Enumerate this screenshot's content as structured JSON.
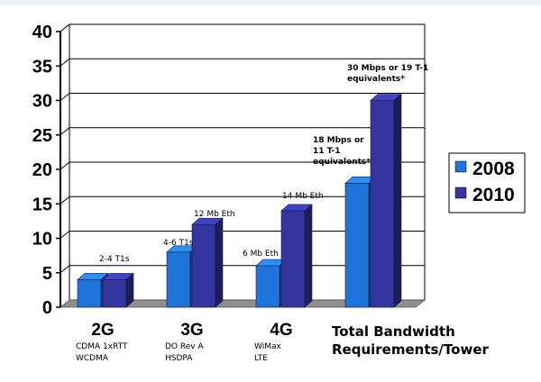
{
  "chart_data": {
    "type": "bar",
    "categories": [
      "2G",
      "3G",
      "4G",
      "Total Bandwidth"
    ],
    "category_sublabels": [
      [
        "CDMA 1xRTT",
        "WCDMA"
      ],
      [
        "DO Rev A",
        "HSDPA"
      ],
      [
        "WiMax",
        "LTE"
      ],
      []
    ],
    "series": [
      {
        "name": "2008",
        "values": [
          4,
          8,
          6,
          18
        ],
        "color": "#1e74d8"
      },
      {
        "name": "2010",
        "values": [
          4,
          12,
          14,
          30
        ],
        "color": "#3535a0"
      }
    ],
    "ylim": [
      0,
      40
    ],
    "yticks": [
      0,
      5,
      10,
      15,
      20,
      25,
      30,
      35,
      40
    ],
    "xlabel": [
      "Total Bandwidth",
      "Requirements/Tower"
    ],
    "grid": true,
    "legend_position": "right",
    "annotations": [
      {
        "category": 0,
        "lines": [
          "2-4 T1s"
        ],
        "bold": false
      },
      {
        "category": 1,
        "lines": [
          "4-6 T1s"
        ],
        "bold": false
      },
      {
        "category": 1,
        "lines": [
          "12 Mb Eth"
        ],
        "bold": false
      },
      {
        "category": 2,
        "lines": [
          "6 Mb Eth"
        ],
        "bold": false
      },
      {
        "category": 2,
        "lines": [
          "14 Mb Eth"
        ],
        "bold": false
      },
      {
        "category": 3,
        "lines": [
          "18 Mbps or",
          "11 T-1",
          "equivalents*"
        ],
        "bold": true
      },
      {
        "category": 3,
        "lines": [
          "30 Mbps or 19 T-1",
          "equivalents*"
        ],
        "bold": true
      }
    ]
  }
}
